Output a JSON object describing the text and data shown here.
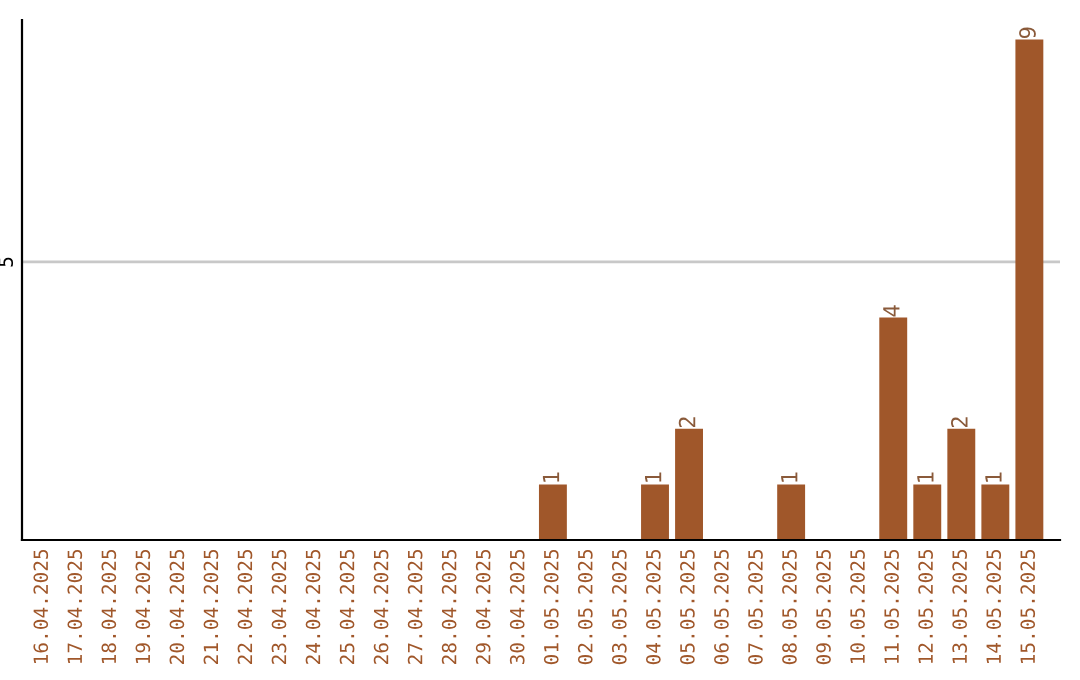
{
  "chart_data": {
    "type": "bar",
    "categories": [
      "16.04.2025",
      "17.04.2025",
      "18.04.2025",
      "19.04.2025",
      "20.04.2025",
      "21.04.2025",
      "22.04.2025",
      "23.04.2025",
      "24.04.2025",
      "25.04.2025",
      "26.04.2025",
      "27.04.2025",
      "28.04.2025",
      "29.04.2025",
      "30.04.2025",
      "01.05.2025",
      "02.05.2025",
      "03.05.2025",
      "04.05.2025",
      "05.05.2025",
      "06.05.2025",
      "07.05.2025",
      "08.05.2025",
      "09.05.2025",
      "10.05.2025",
      "11.05.2025",
      "12.05.2025",
      "13.05.2025",
      "14.05.2025",
      "15.05.2025"
    ],
    "values": [
      null,
      null,
      null,
      null,
      null,
      null,
      null,
      null,
      null,
      null,
      null,
      null,
      null,
      null,
      null,
      1,
      null,
      null,
      1,
      2,
      null,
      null,
      1,
      null,
      null,
      4,
      1,
      2,
      1,
      9
    ],
    "data_labels": true,
    "color": "#a0572a",
    "ylim": [
      0,
      9.35
    ],
    "legend": false,
    "ref_lines": [
      {
        "axis": "y",
        "value": 5,
        "label": "5",
        "color": "#c8c8c8"
      }
    ]
  }
}
